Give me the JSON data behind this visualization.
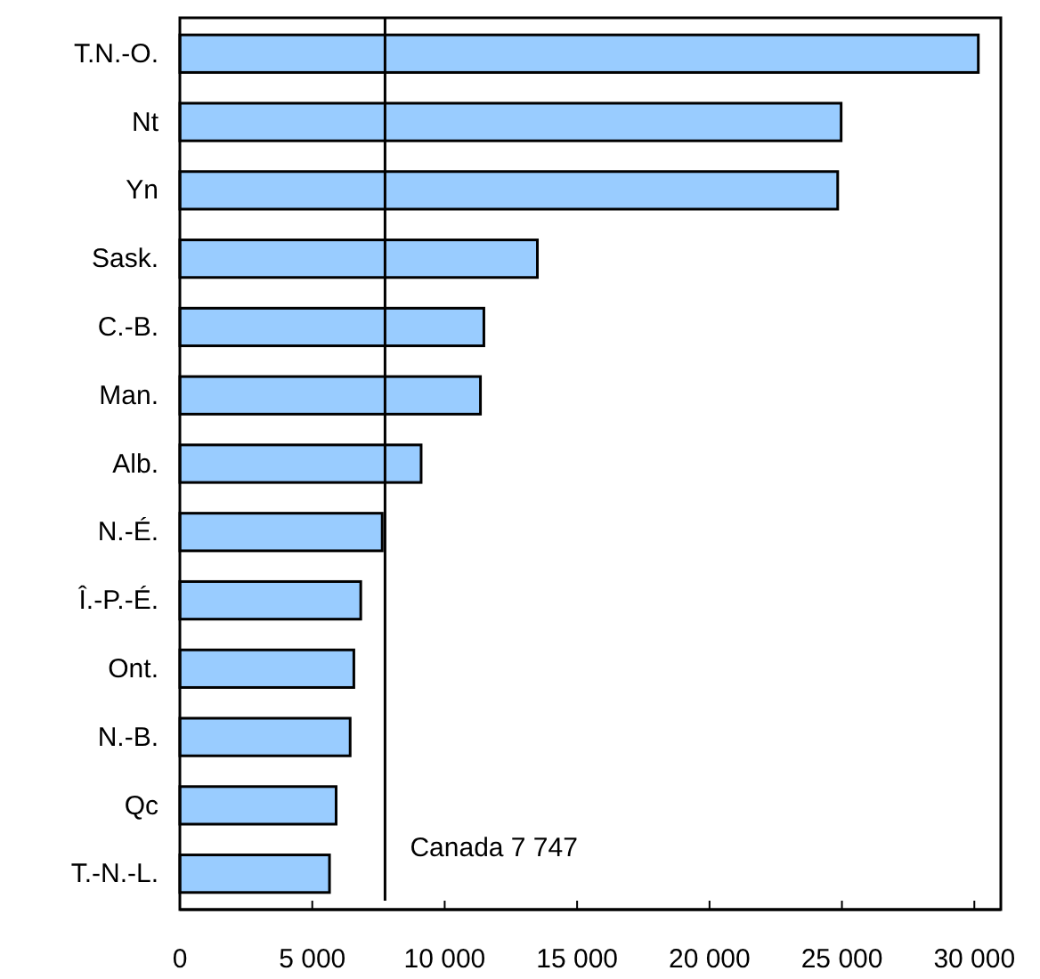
{
  "chart_data": {
    "type": "bar",
    "orientation": "horizontal",
    "categories": [
      "T.N.-O.",
      "Nt",
      "Yn",
      "Sask.",
      "C.-B.",
      "Man.",
      "Alb.",
      "N.-É.",
      "Î.-P.-É.",
      "Ont.",
      "N.-B.",
      "Qc",
      "T.-N.-L."
    ],
    "values": [
      30150,
      24970,
      24840,
      13500,
      11480,
      11350,
      9110,
      7640,
      6830,
      6570,
      6430,
      5900,
      5650
    ],
    "color": "#99ccff",
    "xlim": [
      0,
      31000
    ],
    "xticks": [
      {
        "value": 0,
        "label": "0"
      },
      {
        "value": 5000,
        "label": "5 000"
      },
      {
        "value": 10000,
        "label": "10 000"
      },
      {
        "value": 15000,
        "label": "15 000"
      },
      {
        "value": 20000,
        "label": "20 000"
      },
      {
        "value": 25000,
        "label": "25 000"
      },
      {
        "value": 30000,
        "label": "30 000"
      }
    ],
    "grid": false,
    "ref_lines": [
      {
        "axis": "x",
        "value": 7747,
        "label": "Canada 7 747",
        "color": "#000000"
      }
    ]
  }
}
